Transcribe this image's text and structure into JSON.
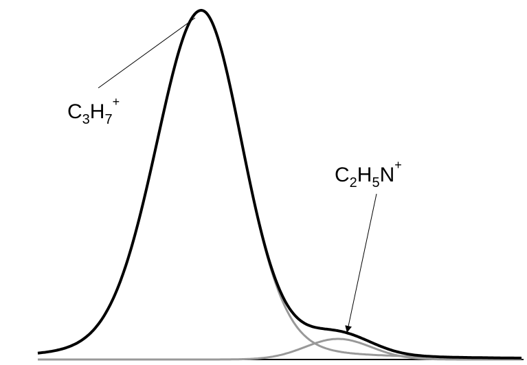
{
  "labels": [
    {
      "parts": [
        "C",
        "3",
        "H",
        "7",
        "+"
      ]
    },
    {
      "parts": [
        "C",
        "2",
        "H",
        "5",
        "N",
        "+"
      ]
    }
  ]
}
